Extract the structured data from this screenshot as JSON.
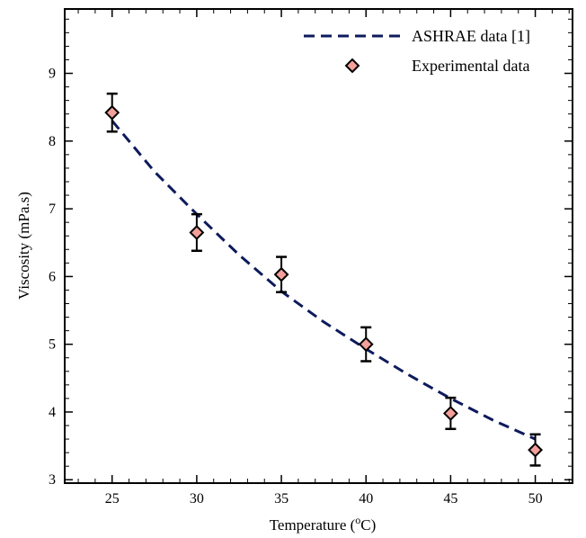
{
  "chart_data": {
    "type": "scatter",
    "xlabel": "Temperature (°C)",
    "xlabel_parts": {
      "pre": "Temperature (",
      "sup": "o",
      "post": "C)"
    },
    "ylabel": "Viscosity (mPa.s)",
    "xlim": [
      22.2,
      52.2
    ],
    "ylim": [
      2.95,
      9.95
    ],
    "xticks": [
      25,
      30,
      35,
      40,
      45,
      50
    ],
    "yticks": [
      3,
      4,
      5,
      6,
      7,
      8,
      9
    ],
    "grid": false,
    "legend_position": "top-right",
    "series": [
      {
        "name": "ASHRAE data [1]",
        "kind": "dashed-line",
        "color": "#0d1a5c",
        "x": [
          25,
          27.5,
          30,
          32.5,
          35,
          37.5,
          40,
          42.5,
          45,
          47.5,
          50
        ],
        "y": [
          8.3,
          7.55,
          6.92,
          6.32,
          5.78,
          5.33,
          4.93,
          4.55,
          4.2,
          3.88,
          3.6
        ]
      },
      {
        "name": "Experimental data",
        "kind": "diamond-markers",
        "color": "#f4a09a",
        "stroke": "#000000",
        "x": [
          25,
          30,
          35,
          40,
          45,
          50
        ],
        "y": [
          8.42,
          6.65,
          6.03,
          5.0,
          3.98,
          3.44
        ],
        "err": [
          0.28,
          0.27,
          0.26,
          0.25,
          0.23,
          0.23
        ]
      }
    ]
  }
}
